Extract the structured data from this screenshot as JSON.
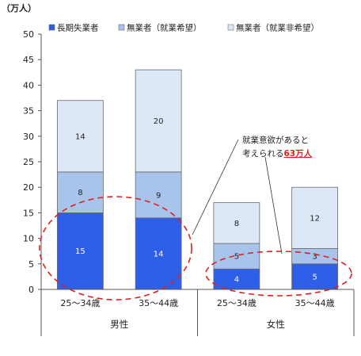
{
  "chart_data": {
    "type": "bar",
    "stacked": true,
    "unit_label": "（万人）",
    "categories": [
      "25～34歳",
      "35～44歳",
      "25～34歳",
      "35～44歳"
    ],
    "groups": [
      {
        "label": "男性",
        "categories": [
          "25～34歳",
          "35～44歳"
        ]
      },
      {
        "label": "女性",
        "categories": [
          "25～34歳",
          "35～44歳"
        ]
      }
    ],
    "series": [
      {
        "name": "長期失業者",
        "values": [
          15,
          14,
          4,
          5
        ],
        "color": "#2f5fe8"
      },
      {
        "name": "無業者（就業希望）",
        "values": [
          8,
          9,
          5,
          3
        ],
        "color": "#a8c4ea"
      },
      {
        "name": "無業者（就業非希望）",
        "values": [
          14,
          20,
          8,
          12
        ],
        "color": "#dde8f7"
      }
    ],
    "ylim": [
      0,
      50
    ],
    "yticks": [
      0,
      5,
      10,
      15,
      20,
      25,
      30,
      35,
      40,
      45,
      50
    ],
    "legend_position": "top",
    "grid": false,
    "annotation": {
      "line1": "就業意欲があると",
      "line2_prefix": "考えられる",
      "line2_highlight": "63万人",
      "highlight_color": "#e02020"
    }
  }
}
